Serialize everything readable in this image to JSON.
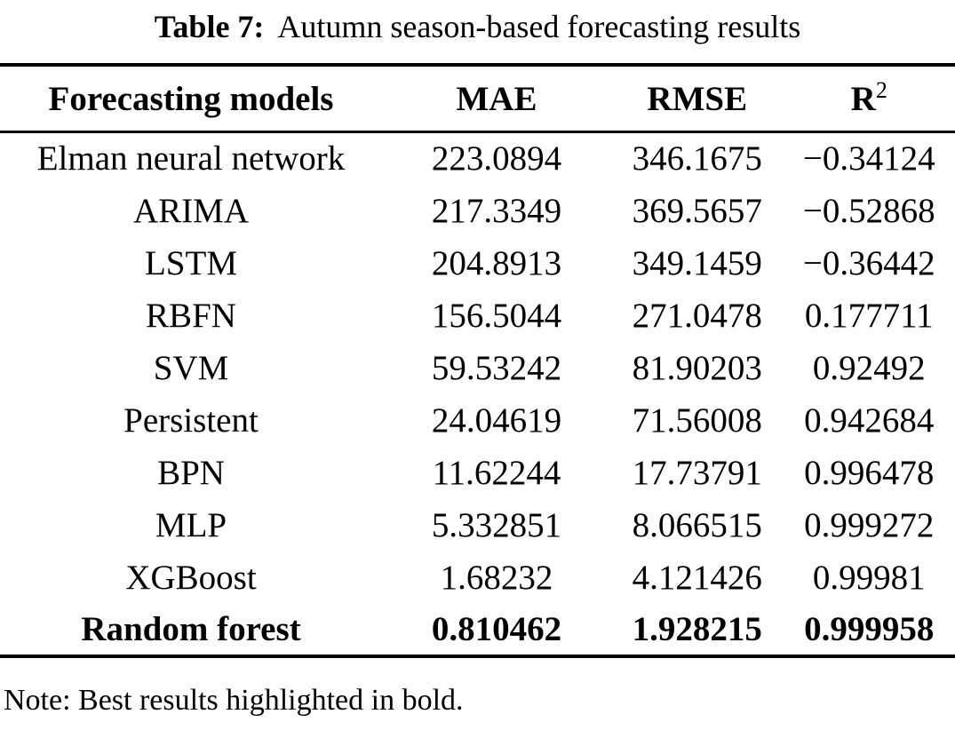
{
  "page": {
    "title": {
      "label": "Table 7:",
      "text": "Autumn season-based forecasting results"
    },
    "table": {
      "headers": {
        "model": "Forecasting models",
        "mae": "MAE",
        "rmse": "RMSE",
        "r2_base": "R",
        "r2_sup": "2"
      },
      "rows": [
        {
          "model": "Elman neural network",
          "mae": "223.0894",
          "rmse": "346.1675",
          "r2": "−0.34124",
          "bold": false
        },
        {
          "model": "ARIMA",
          "mae": "217.3349",
          "rmse": "369.5657",
          "r2": "−0.52868",
          "bold": false
        },
        {
          "model": "LSTM",
          "mae": "204.8913",
          "rmse": "349.1459",
          "r2": "−0.36442",
          "bold": false
        },
        {
          "model": "RBFN",
          "mae": "156.5044",
          "rmse": "271.0478",
          "r2": "0.177711",
          "bold": false
        },
        {
          "model": "SVM",
          "mae": "59.53242",
          "rmse": "81.90203",
          "r2": "0.92492",
          "bold": false
        },
        {
          "model": "Persistent",
          "mae": "24.04619",
          "rmse": "71.56008",
          "r2": "0.942684",
          "bold": false
        },
        {
          "model": "BPN",
          "mae": "11.62244",
          "rmse": "17.73791",
          "r2": "0.996478",
          "bold": false
        },
        {
          "model": "MLP",
          "mae": "5.332851",
          "rmse": "8.066515",
          "r2": "0.999272",
          "bold": false
        },
        {
          "model": "XGBoost",
          "mae": "1.68232",
          "rmse": "4.121426",
          "r2": "0.99981",
          "bold": false
        },
        {
          "model": "Random forest",
          "mae": "0.810462",
          "rmse": "1.928215",
          "r2": "0.999958",
          "bold": true
        }
      ],
      "note": "Note: Best results highlighted in bold."
    }
  }
}
